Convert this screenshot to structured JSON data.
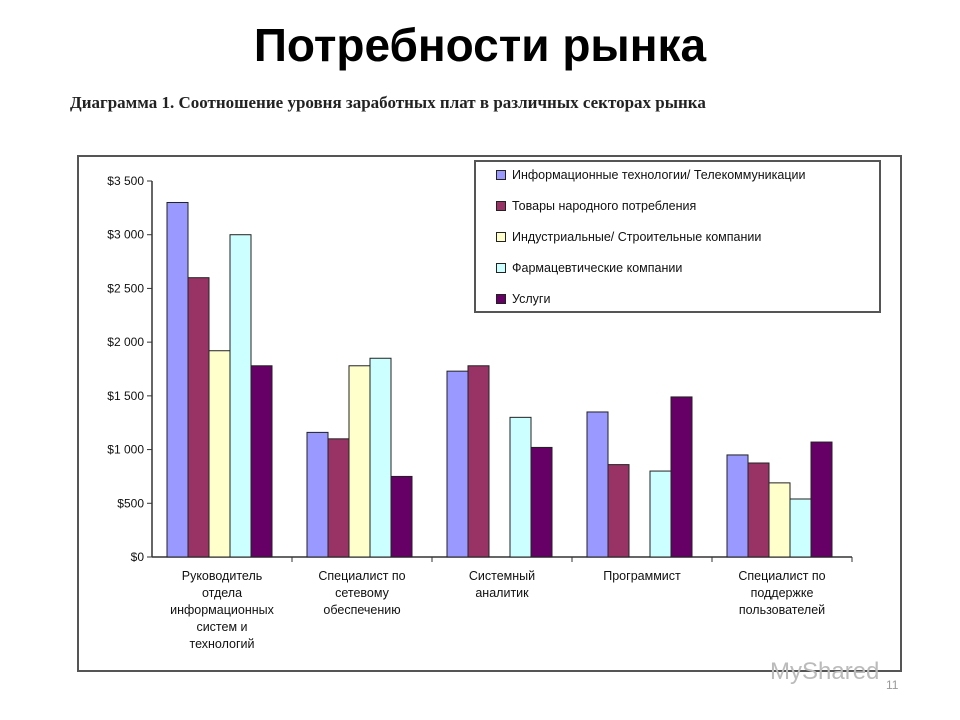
{
  "slide": {
    "title": "Потребности рынка",
    "number": "11",
    "watermark": "MyShared"
  },
  "chart_data": {
    "type": "bar",
    "title": "Диаграмма 1. Соотношение уровня заработных плат в различных секторах рынка",
    "categories": [
      "Руководитель отдела информационных систем и технологий",
      "Специалист по сетевому обеспечению",
      "Системный аналитик",
      "Программист",
      "Специалист по поддержке пользователей"
    ],
    "series": [
      {
        "name": "Информационные технологии/ Телекоммуникации",
        "color": "#9999ff",
        "values": [
          3300,
          1160,
          1730,
          1350,
          950
        ]
      },
      {
        "name": "Товары народного потребления",
        "color": "#993366",
        "values": [
          2600,
          1100,
          1780,
          860,
          875
        ]
      },
      {
        "name": "Индустриальные/ Строительные компании",
        "color": "#ffffcc",
        "values": [
          1920,
          1780,
          0,
          0,
          690
        ]
      },
      {
        "name": "Фармацевтические компании",
        "color": "#ccffff",
        "values": [
          3000,
          1850,
          1300,
          800,
          540
        ]
      },
      {
        "name": "Услуги",
        "color": "#660066",
        "values": [
          1780,
          750,
          1020,
          1490,
          1070
        ]
      }
    ],
    "yticks": [
      "$0",
      "$500",
      "$1 000",
      "$1 500",
      "$2 000",
      "$2 500",
      "$3 000",
      "$3 500"
    ],
    "ylim": [
      0,
      3500
    ],
    "grid": false,
    "legend": "top-right"
  }
}
